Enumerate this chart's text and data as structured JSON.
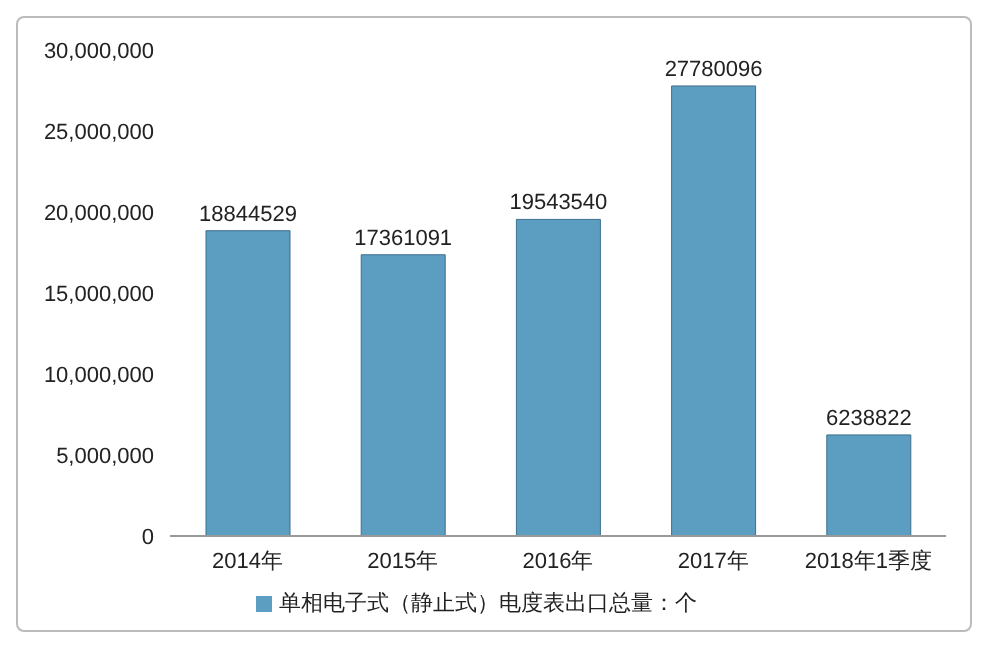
{
  "chart_data": {
    "type": "bar",
    "categories": [
      "2014年",
      "2015年",
      "2016年",
      "2017年",
      "2018年1季度"
    ],
    "series": [
      {
        "name": "单相电子式（静止式）电度表出口总量：个",
        "color": "#5b9ec2",
        "values": [
          18844529,
          17361091,
          19543540,
          27780096,
          6238822
        ]
      }
    ],
    "ylim": [
      0,
      30000000
    ],
    "yticks": [
      {
        "value": 0,
        "label": "0"
      },
      {
        "value": 5000000,
        "label": "5,000,000"
      },
      {
        "value": 10000000,
        "label": "10,000,000"
      },
      {
        "value": 15000000,
        "label": "15,000,000"
      },
      {
        "value": 20000000,
        "label": "20,000,000"
      },
      {
        "value": 25000000,
        "label": "25,000,000"
      },
      {
        "value": 30000000,
        "label": "30,000,000"
      }
    ],
    "data_labels": true,
    "grid": false,
    "legend": "bottom"
  }
}
